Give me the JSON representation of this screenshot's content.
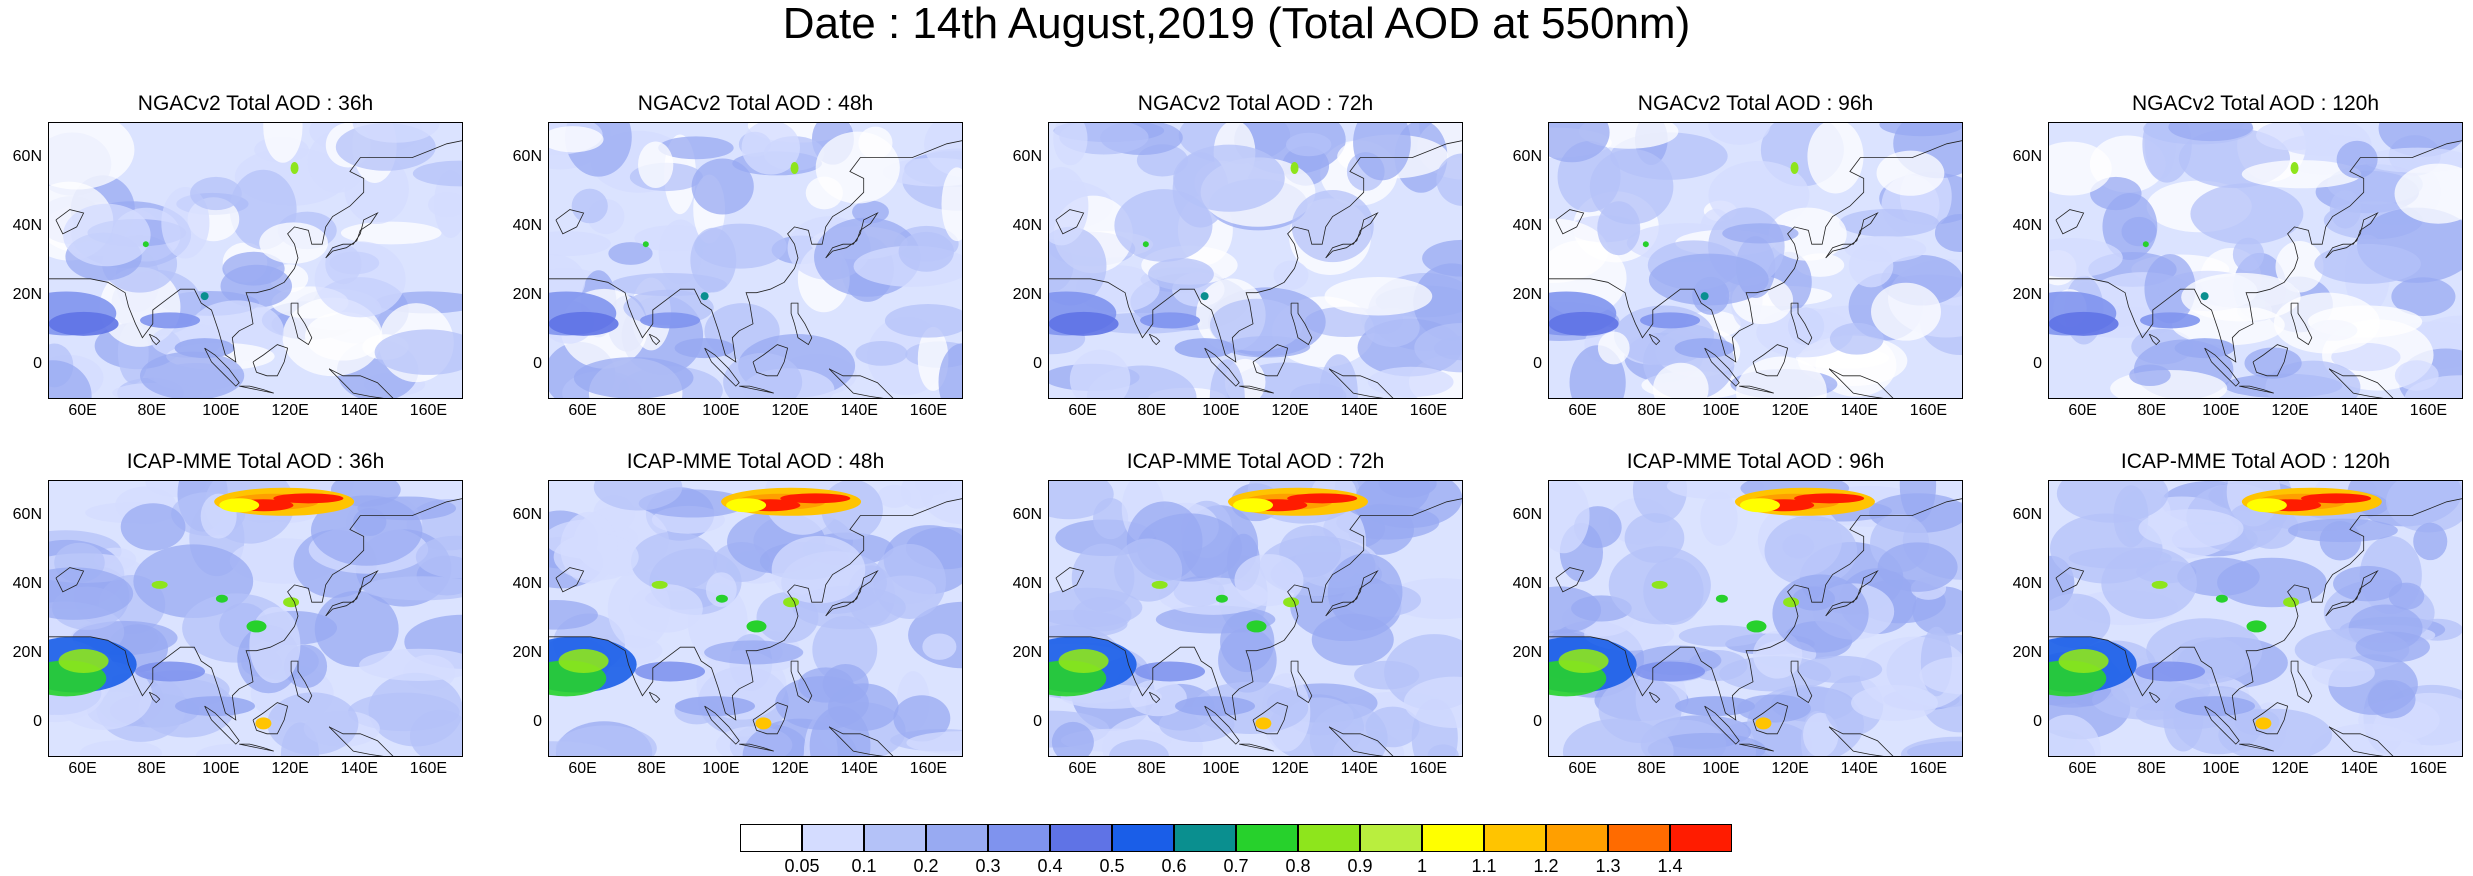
{
  "title": "Date : 14th August,2019 (Total AOD at 550nm)",
  "panels_top": [
    {
      "title": "NGACv2 Total AOD : 36h"
    },
    {
      "title": "NGACv2 Total AOD : 48h"
    },
    {
      "title": "NGACv2 Total AOD : 72h"
    },
    {
      "title": "NGACv2 Total AOD : 96h"
    },
    {
      "title": "NGACv2 Total AOD : 120h"
    }
  ],
  "panels_bottom": [
    {
      "title": "ICAP-MME Total AOD : 36h"
    },
    {
      "title": "ICAP-MME Total AOD : 48h"
    },
    {
      "title": "ICAP-MME Total AOD : 72h"
    },
    {
      "title": "ICAP-MME Total AOD : 96h"
    },
    {
      "title": "ICAP-MME Total AOD : 120h"
    }
  ],
  "map": {
    "lon_ticks": [
      "60E",
      "80E",
      "100E",
      "120E",
      "140E",
      "160E"
    ],
    "lat_ticks": [
      "60N",
      "40N",
      "20N",
      "0"
    ],
    "lon_range": [
      50,
      170
    ],
    "lat_range": [
      -10,
      70
    ]
  },
  "colorbar": {
    "labels": [
      "0.05",
      "0.1",
      "0.2",
      "0.3",
      "0.4",
      "0.5",
      "0.6",
      "0.7",
      "0.8",
      "0.9",
      "1",
      "1.1",
      "1.2",
      "1.3",
      "1.4"
    ],
    "colors": [
      "#ffffff",
      "#d4dcff",
      "#b4c2f8",
      "#98aaf2",
      "#7f93ee",
      "#5f73e6",
      "#1a5ee8",
      "#0a8f8f",
      "#27d12c",
      "#8ee51c",
      "#b9ee3e",
      "#ffff00",
      "#ffc400",
      "#ff9f00",
      "#ff6b00",
      "#ff1c00"
    ]
  }
}
